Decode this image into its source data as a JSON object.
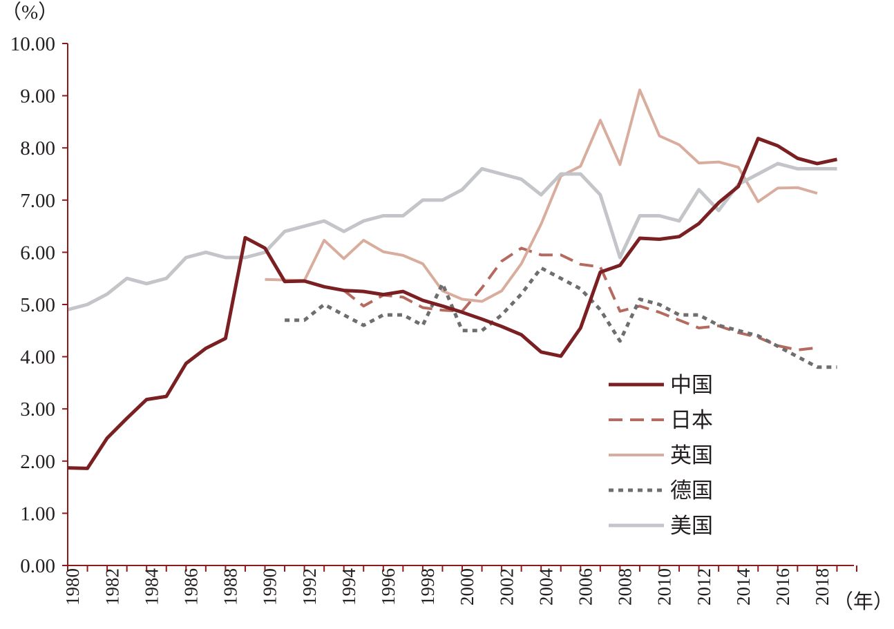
{
  "chart_data": {
    "type": "line",
    "y_unit": "（%）",
    "x_unit": "（年）",
    "ylim": [
      0,
      10
    ],
    "xlim": [
      1980,
      2019
    ],
    "y_ticks": [
      "0.00",
      "1.00",
      "2.00",
      "3.00",
      "4.00",
      "5.00",
      "6.00",
      "7.00",
      "8.00",
      "9.00",
      "10.00"
    ],
    "x_ticks": [
      "1980",
      "1982",
      "1984",
      "1986",
      "1988",
      "1990",
      "1992",
      "1994",
      "1996",
      "1998",
      "2000",
      "2002",
      "2004",
      "2006",
      "2008",
      "2010",
      "2012",
      "2014",
      "2016",
      "2018"
    ],
    "legend_position": "lower-right",
    "grid": false,
    "series": [
      {
        "name": "中国",
        "color": "#7a1f22",
        "dash": "solid",
        "width": 5,
        "x": [
          1980,
          1981,
          1982,
          1983,
          1984,
          1985,
          1986,
          1987,
          1988,
          1989,
          1990,
          1991,
          1992,
          1993,
          1994,
          1995,
          1996,
          1997,
          1998,
          1999,
          2000,
          2001,
          2002,
          2003,
          2004,
          2005,
          2006,
          2007,
          2008,
          2009,
          2010,
          2011,
          2012,
          2013,
          2014,
          2015,
          2016,
          2017,
          2018,
          2019
        ],
        "y": [
          1.87,
          1.86,
          2.44,
          2.82,
          3.18,
          3.24,
          3.87,
          4.16,
          4.35,
          6.28,
          6.08,
          5.44,
          5.45,
          5.34,
          5.27,
          5.25,
          5.19,
          5.25,
          5.08,
          4.97,
          4.85,
          4.72,
          4.58,
          4.42,
          4.09,
          4.01,
          4.55,
          5.62,
          5.75,
          6.27,
          6.25,
          6.3,
          6.55,
          6.95,
          7.26,
          8.18,
          8.04,
          7.8,
          7.7,
          7.78
        ]
      },
      {
        "name": "日本",
        "color": "#b56a5f",
        "dash": "long-dash",
        "width": 4,
        "x": [
          1994,
          1995,
          1996,
          1997,
          1998,
          1999,
          2000,
          2001,
          2002,
          2003,
          2004,
          2005,
          2006,
          2007,
          2008,
          2009,
          2010,
          2011,
          2012,
          2013,
          2014,
          2015,
          2016,
          2017,
          2018
        ],
        "y": [
          5.27,
          4.97,
          5.18,
          5.14,
          4.94,
          4.89,
          4.87,
          5.32,
          5.83,
          6.08,
          5.95,
          5.95,
          5.77,
          5.72,
          4.87,
          4.97,
          4.85,
          4.7,
          4.55,
          4.59,
          4.46,
          4.37,
          4.21,
          4.13,
          4.17
        ]
      },
      {
        "name": "英国",
        "color": "#d9ad9e",
        "dash": "solid",
        "width": 4,
        "x": [
          1990,
          1991,
          1992,
          1993,
          1994,
          1995,
          1996,
          1997,
          1998,
          1999,
          2000,
          2001,
          2002,
          2003,
          2004,
          2005,
          2006,
          2007,
          2008,
          2009,
          2010,
          2011,
          2012,
          2013,
          2014,
          2015,
          2016,
          2017,
          2018
        ],
        "y": [
          5.48,
          5.47,
          5.46,
          6.23,
          5.88,
          6.23,
          6.01,
          5.94,
          5.78,
          5.26,
          5.1,
          5.06,
          5.26,
          5.78,
          6.54,
          7.46,
          7.65,
          8.53,
          7.68,
          9.11,
          8.23,
          8.06,
          7.71,
          7.73,
          7.63,
          6.97,
          7.23,
          7.24,
          7.13
        ]
      },
      {
        "name": "德国",
        "color": "#6e6e6e",
        "dash": "dotted",
        "width": 5,
        "x": [
          1991,
          1992,
          1993,
          1994,
          1995,
          1996,
          1997,
          1998,
          1999,
          2000,
          2001,
          2002,
          2003,
          2004,
          2005,
          2006,
          2007,
          2008,
          2009,
          2010,
          2011,
          2012,
          2013,
          2014,
          2015,
          2016,
          2017,
          2018,
          2019
        ],
        "y": [
          4.7,
          4.7,
          5.0,
          4.8,
          4.6,
          4.8,
          4.8,
          4.6,
          5.4,
          4.5,
          4.5,
          4.8,
          5.2,
          5.7,
          5.5,
          5.3,
          4.9,
          4.3,
          5.1,
          5.0,
          4.8,
          4.8,
          4.6,
          4.5,
          4.4,
          4.2,
          4.0,
          3.8,
          3.8
        ]
      },
      {
        "name": "美国",
        "color": "#c3c5c9",
        "dash": "solid",
        "width": 5,
        "x": [
          1980,
          1981,
          1982,
          1983,
          1984,
          1985,
          1986,
          1987,
          1988,
          1989,
          1990,
          1991,
          1992,
          1993,
          1994,
          1995,
          1996,
          1997,
          1998,
          1999,
          2000,
          2001,
          2002,
          2003,
          2004,
          2005,
          2006,
          2007,
          2008,
          2009,
          2010,
          2011,
          2012,
          2013,
          2014,
          2015,
          2016,
          2017,
          2018,
          2019
        ],
        "y": [
          4.9,
          5.0,
          5.2,
          5.5,
          5.4,
          5.5,
          5.9,
          6.0,
          5.9,
          5.9,
          6.0,
          6.4,
          6.5,
          6.6,
          6.4,
          6.6,
          6.7,
          6.7,
          7.0,
          7.0,
          7.2,
          7.6,
          7.5,
          7.4,
          7.1,
          7.5,
          7.5,
          7.1,
          5.9,
          6.7,
          6.7,
          6.6,
          7.2,
          6.8,
          7.3,
          7.5,
          7.7,
          7.6,
          7.6,
          7.6
        ]
      }
    ]
  }
}
